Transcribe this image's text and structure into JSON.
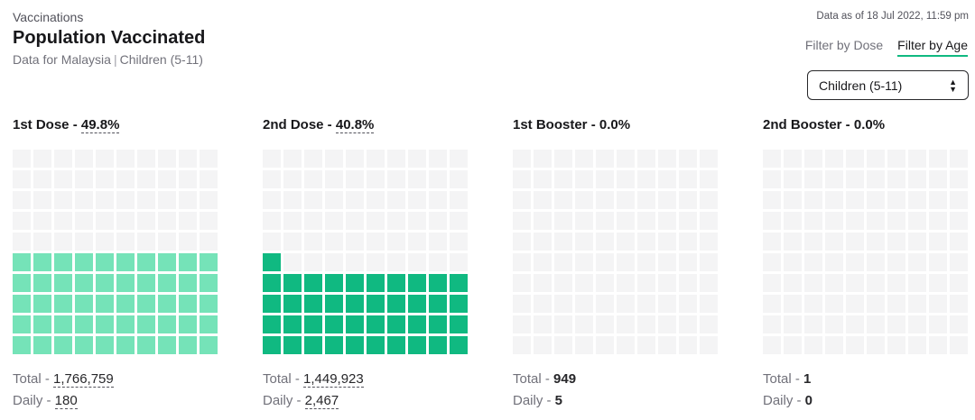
{
  "header": {
    "eyebrow": "Vaccinations",
    "title": "Population Vaccinated",
    "subtitle_region": "Data for Malaysia",
    "subtitle_separator": "|",
    "subtitle_group": "Children (5-11)",
    "as_of": "Data as of 18 Jul 2022, 11:59 pm"
  },
  "filters": {
    "dose_label": "Filter by Dose",
    "age_label": "Filter by Age",
    "active": "age"
  },
  "select": {
    "value": "Children (5-11)"
  },
  "colors": {
    "empty": "#f4f4f5",
    "light_green": "#75e3b8",
    "dark_green": "#10b981",
    "accent_underline": "#10b981"
  },
  "doses": [
    {
      "name": "1st Dose",
      "separator": " - ",
      "percent": "49.8%",
      "fraction": 0.498,
      "fill": "light",
      "total_label": "Total - ",
      "total": "1,766,759",
      "daily_label": "Daily - ",
      "daily": "180",
      "underlined": true
    },
    {
      "name": "2nd Dose",
      "separator": " - ",
      "percent": "40.8%",
      "fraction": 0.408,
      "fill": "dark",
      "total_label": "Total - ",
      "total": "1,449,923",
      "daily_label": "Daily - ",
      "daily": "2,467",
      "underlined": true
    },
    {
      "name": "1st Booster",
      "separator": " - ",
      "percent": "0.0%",
      "fraction": 0.0,
      "fill": "light",
      "total_label": "Total - ",
      "total": "949",
      "daily_label": "Daily - ",
      "daily": "5",
      "underlined": false
    },
    {
      "name": "2nd Booster",
      "separator": " - ",
      "percent": "0.0%",
      "fraction": 0.0,
      "fill": "light",
      "total_label": "Total - ",
      "total": "1",
      "daily_label": "Daily - ",
      "daily": "0",
      "underlined": false
    }
  ]
}
